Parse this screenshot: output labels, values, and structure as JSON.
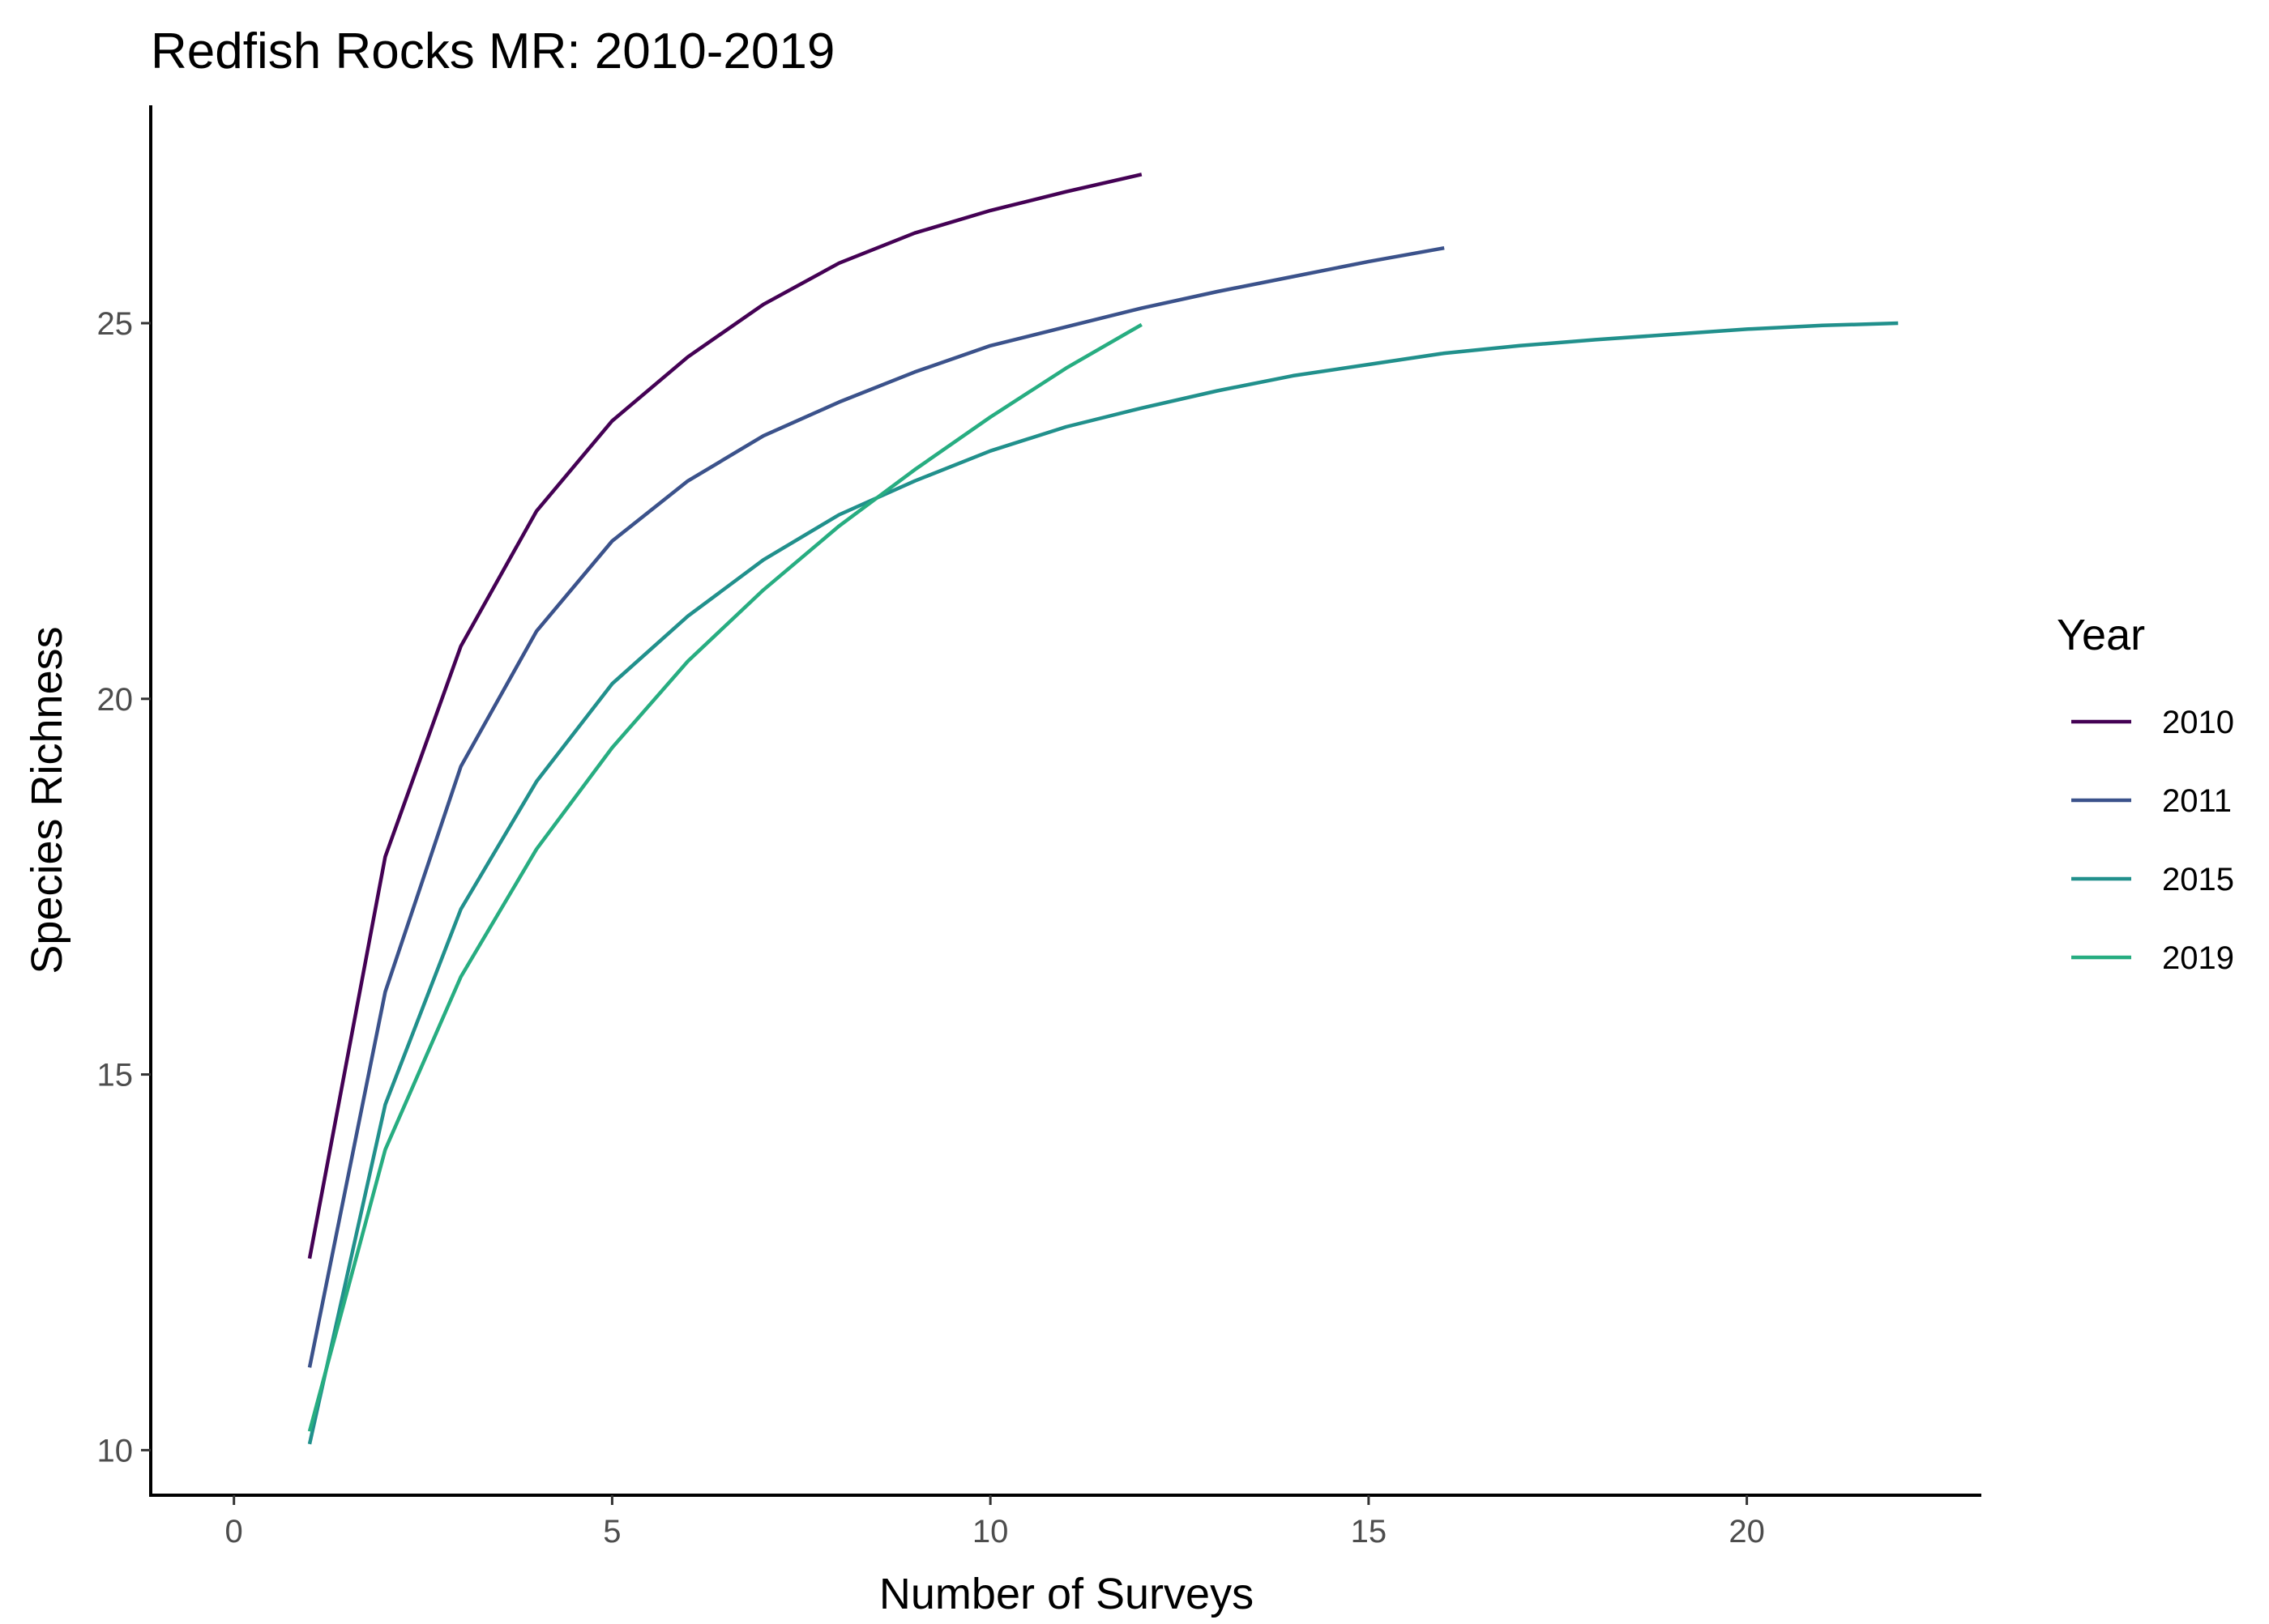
{
  "chart_data": {
    "type": "line",
    "title": "Redfish Rocks MR: 2010-2019",
    "xlabel": "Number of Surveys",
    "ylabel": "Species Richness",
    "xlim": [
      -1.1,
      23.1
    ],
    "ylim": [
      9.4,
      27.9
    ],
    "x_ticks": [
      0,
      5,
      10,
      15,
      20
    ],
    "x_tick_labels": [
      "0",
      "5",
      "10",
      "15",
      "20"
    ],
    "y_ticks": [
      10,
      15,
      20,
      25
    ],
    "y_tick_labels": [
      "10",
      "15",
      "20",
      "25"
    ],
    "grid": false,
    "legend": {
      "title": "Year",
      "position": "right"
    },
    "series": [
      {
        "name": "2010",
        "color": "#440154",
        "x": [
          1,
          2,
          3,
          4,
          5,
          6,
          7,
          8,
          9,
          10,
          11,
          12
        ],
        "y": [
          12.55,
          17.9,
          20.7,
          22.5,
          23.7,
          24.55,
          25.25,
          25.8,
          26.2,
          26.5,
          26.75,
          26.98
        ]
      },
      {
        "name": "2011",
        "color": "#3B528B",
        "x": [
          1,
          2,
          3,
          4,
          5,
          6,
          7,
          8,
          9,
          10,
          11,
          12,
          13,
          14,
          15,
          16
        ],
        "y": [
          11.1,
          16.1,
          19.1,
          20.9,
          22.1,
          22.9,
          23.5,
          23.95,
          24.35,
          24.7,
          24.95,
          25.2,
          25.42,
          25.62,
          25.82,
          26.0
        ]
      },
      {
        "name": "2015",
        "color": "#21908C",
        "x": [
          1,
          2,
          3,
          4,
          5,
          6,
          7,
          8,
          9,
          10,
          11,
          12,
          13,
          14,
          15,
          16,
          17,
          18,
          19,
          20,
          21,
          22
        ],
        "y": [
          10.08,
          14.6,
          17.2,
          18.9,
          20.2,
          21.1,
          21.85,
          22.45,
          22.9,
          23.3,
          23.62,
          23.87,
          24.1,
          24.3,
          24.45,
          24.6,
          24.7,
          24.78,
          24.85,
          24.92,
          24.97,
          25.0
        ]
      },
      {
        "name": "2019",
        "color": "#27AD81",
        "x": [
          1,
          2,
          3,
          4,
          5,
          6,
          7,
          8,
          9,
          10,
          11,
          12
        ],
        "y": [
          10.25,
          14.0,
          16.3,
          18.0,
          19.35,
          20.5,
          21.45,
          22.3,
          23.05,
          23.75,
          24.4,
          24.98
        ]
      }
    ]
  }
}
